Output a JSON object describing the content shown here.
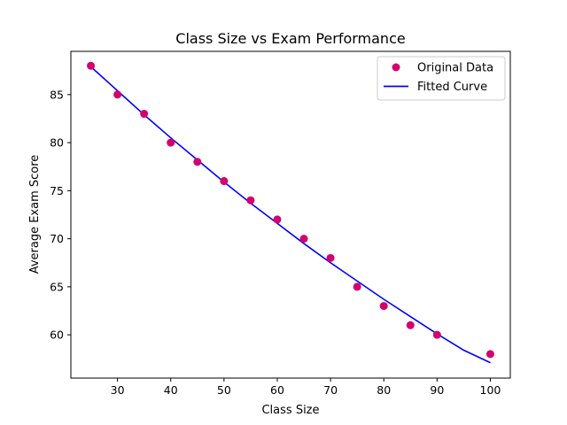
{
  "chart_data": {
    "type": "scatter",
    "title": "Class Size vs Exam Performance",
    "xlabel": "Class Size",
    "ylabel": "Average Exam Score",
    "xlim": [
      21.25,
      103.75
    ],
    "ylim": [
      55.5,
      89.5
    ],
    "xticks": [
      30,
      40,
      50,
      60,
      70,
      80,
      90,
      100
    ],
    "yticks": [
      60,
      65,
      70,
      75,
      80,
      85
    ],
    "grid": false,
    "legend_position": "upper right",
    "series": [
      {
        "name": "Original Data",
        "kind": "scatter",
        "color": "#d4006e",
        "x": [
          25,
          30,
          35,
          40,
          45,
          50,
          55,
          60,
          65,
          70,
          75,
          80,
          85,
          90,
          100
        ],
        "y": [
          88,
          85,
          83,
          80,
          78,
          76,
          74,
          72,
          70,
          68,
          65,
          63,
          61,
          60,
          58
        ]
      },
      {
        "name": "Fitted Curve",
        "kind": "line",
        "color": "#0000ff",
        "x": [
          25,
          30,
          35,
          40,
          45,
          50,
          55,
          60,
          65,
          70,
          75,
          80,
          85,
          90,
          95,
          100
        ],
        "y": [
          87.9,
          85.4,
          82.9,
          80.5,
          78.2,
          75.9,
          73.7,
          71.6,
          69.5,
          67.5,
          65.6,
          63.7,
          61.9,
          60.1,
          58.4,
          57.1
        ]
      }
    ]
  }
}
